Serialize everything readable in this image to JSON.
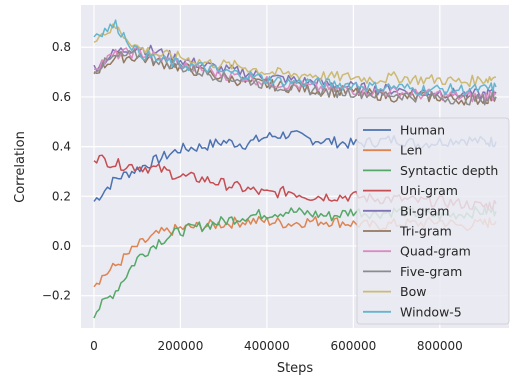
{
  "chart_data": {
    "type": "line",
    "xlabel": "Steps",
    "ylabel": "Correlation",
    "xlim": [
      -30000,
      960000
    ],
    "ylim": [
      -0.33,
      0.97
    ],
    "xticks": [
      0,
      200000,
      400000,
      600000,
      800000
    ],
    "xtick_labels": [
      "0",
      "200000",
      "400000",
      "600000",
      "800000"
    ],
    "yticks": [
      -0.2,
      0.0,
      0.2,
      0.4,
      0.6,
      0.8
    ],
    "ytick_labels": [
      "−0.2",
      "0.0",
      "0.2",
      "0.4",
      "0.6",
      "0.8"
    ],
    "grid": true,
    "background": "#eaeaf2",
    "legend_position": "lower-right",
    "x": [
      0,
      50000,
      100000,
      150000,
      200000,
      250000,
      300000,
      350000,
      400000,
      450000,
      500000,
      550000,
      600000,
      650000,
      700000,
      750000,
      800000,
      850000,
      900000,
      930000
    ],
    "series": [
      {
        "name": "Human",
        "color": "#4c72b0",
        "values": [
          0.18,
          0.27,
          0.31,
          0.35,
          0.39,
          0.4,
          0.42,
          0.41,
          0.44,
          0.45,
          0.43,
          0.42,
          0.41,
          0.42,
          0.43,
          0.41,
          0.42,
          0.43,
          0.42,
          0.42
        ]
      },
      {
        "name": "Len",
        "color": "#dd8452",
        "values": [
          -0.15,
          -0.08,
          0.0,
          0.05,
          0.07,
          0.08,
          0.09,
          0.1,
          0.1,
          0.09,
          0.1,
          0.1,
          0.09,
          0.08,
          0.09,
          0.09,
          0.1,
          0.08,
          0.09,
          0.1
        ]
      },
      {
        "name": "Syntactic depth",
        "color": "#55a868",
        "values": [
          -0.27,
          -0.18,
          -0.05,
          0.02,
          0.06,
          0.08,
          0.1,
          0.12,
          0.13,
          0.14,
          0.13,
          0.12,
          0.14,
          0.13,
          0.14,
          0.13,
          0.12,
          0.13,
          0.14,
          0.14
        ]
      },
      {
        "name": "Uni-gram",
        "color": "#c44e52",
        "values": [
          0.36,
          0.33,
          0.32,
          0.31,
          0.28,
          0.27,
          0.25,
          0.23,
          0.21,
          0.22,
          0.2,
          0.2,
          0.2,
          0.19,
          0.19,
          0.18,
          0.18,
          0.17,
          0.16,
          0.17
        ]
      },
      {
        "name": "Bi-gram",
        "color": "#8172b3",
        "values": [
          0.72,
          0.78,
          0.8,
          0.78,
          0.75,
          0.73,
          0.71,
          0.7,
          0.68,
          0.67,
          0.66,
          0.65,
          0.64,
          0.63,
          0.63,
          0.62,
          0.62,
          0.61,
          0.61,
          0.62
        ]
      },
      {
        "name": "Tri-gram",
        "color": "#937860",
        "values": [
          0.7,
          0.76,
          0.76,
          0.74,
          0.72,
          0.7,
          0.68,
          0.66,
          0.65,
          0.64,
          0.63,
          0.62,
          0.62,
          0.61,
          0.6,
          0.6,
          0.6,
          0.59,
          0.59,
          0.6
        ]
      },
      {
        "name": "Quad-gram",
        "color": "#da8bc3",
        "values": [
          0.72,
          0.77,
          0.78,
          0.76,
          0.73,
          0.71,
          0.69,
          0.68,
          0.66,
          0.65,
          0.64,
          0.63,
          0.63,
          0.62,
          0.62,
          0.61,
          0.61,
          0.6,
          0.6,
          0.61
        ]
      },
      {
        "name": "Five-gram",
        "color": "#8c8c8c",
        "values": [
          0.71,
          0.76,
          0.77,
          0.75,
          0.72,
          0.7,
          0.68,
          0.67,
          0.65,
          0.64,
          0.63,
          0.62,
          0.62,
          0.61,
          0.61,
          0.6,
          0.6,
          0.59,
          0.59,
          0.6
        ]
      },
      {
        "name": "Bow",
        "color": "#ccb974",
        "values": [
          0.84,
          0.88,
          0.8,
          0.77,
          0.76,
          0.74,
          0.73,
          0.72,
          0.7,
          0.69,
          0.69,
          0.68,
          0.68,
          0.67,
          0.68,
          0.67,
          0.67,
          0.66,
          0.67,
          0.68
        ]
      },
      {
        "name": "Window-5",
        "color": "#64b5cd",
        "values": [
          0.85,
          0.89,
          0.78,
          0.75,
          0.73,
          0.72,
          0.7,
          0.69,
          0.67,
          0.66,
          0.66,
          0.65,
          0.65,
          0.64,
          0.64,
          0.63,
          0.63,
          0.63,
          0.63,
          0.64
        ]
      }
    ]
  }
}
